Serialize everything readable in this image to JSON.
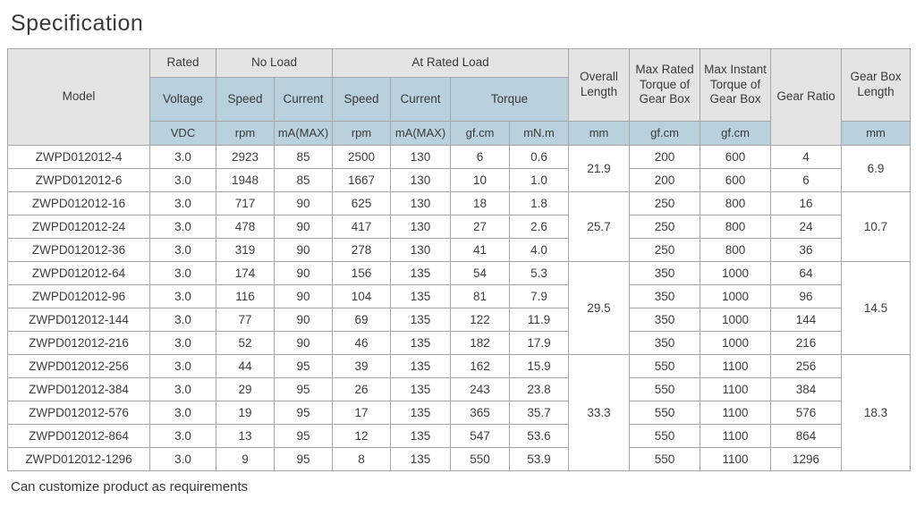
{
  "page": {
    "title": "Specification",
    "footnote": "Can customize product as requirements"
  },
  "table": {
    "header": {
      "model": "Model",
      "rated": "Rated",
      "no_load": "No Load",
      "at_rated_load": "At Rated Load",
      "voltage": "Voltage",
      "speed": "Speed",
      "current": "Current",
      "torque": "Torque",
      "overall_length": "Overall Length",
      "max_rated_torque": "Max Rated Torque of Gear Box",
      "max_instant_torque": "Max Instant Torque of Gear Box",
      "gear_ratio": "Gear Ratio",
      "gear_box_length": "Gear Box Length",
      "units": {
        "vdc": "VDC",
        "rpm": "rpm",
        "ma_max": "mA(MAX)",
        "gf_cm": "gf.cm",
        "mn_m": "mN.m",
        "mm": "mm"
      }
    },
    "colors": {
      "header_gray": "#e4e4e4",
      "header_blue": "#b9d0dd",
      "border": "#a6a6a6",
      "text": "#3d3d3d"
    },
    "rows": [
      {
        "model": "ZWPD012012-4",
        "voltage": "3.0",
        "no_load_speed": "2923",
        "no_load_current": "85",
        "rated_speed": "2500",
        "rated_current": "130",
        "torque_gf_cm": "6",
        "torque_mn_m": "0.6",
        "max_rated_torque": "200",
        "max_instant_torque": "600",
        "gear_ratio": "4"
      },
      {
        "model": "ZWPD012012-6",
        "voltage": "3.0",
        "no_load_speed": "1948",
        "no_load_current": "85",
        "rated_speed": "1667",
        "rated_current": "130",
        "torque_gf_cm": "10",
        "torque_mn_m": "1.0",
        "max_rated_torque": "200",
        "max_instant_torque": "600",
        "gear_ratio": "6"
      },
      {
        "model": "ZWPD012012-16",
        "voltage": "3.0",
        "no_load_speed": "717",
        "no_load_current": "90",
        "rated_speed": "625",
        "rated_current": "130",
        "torque_gf_cm": "18",
        "torque_mn_m": "1.8",
        "max_rated_torque": "250",
        "max_instant_torque": "800",
        "gear_ratio": "16"
      },
      {
        "model": "ZWPD012012-24",
        "voltage": "3.0",
        "no_load_speed": "478",
        "no_load_current": "90",
        "rated_speed": "417",
        "rated_current": "130",
        "torque_gf_cm": "27",
        "torque_mn_m": "2.6",
        "max_rated_torque": "250",
        "max_instant_torque": "800",
        "gear_ratio": "24"
      },
      {
        "model": "ZWPD012012-36",
        "voltage": "3.0",
        "no_load_speed": "319",
        "no_load_current": "90",
        "rated_speed": "278",
        "rated_current": "130",
        "torque_gf_cm": "41",
        "torque_mn_m": "4.0",
        "max_rated_torque": "250",
        "max_instant_torque": "800",
        "gear_ratio": "36"
      },
      {
        "model": "ZWPD012012-64",
        "voltage": "3.0",
        "no_load_speed": "174",
        "no_load_current": "90",
        "rated_speed": "156",
        "rated_current": "135",
        "torque_gf_cm": "54",
        "torque_mn_m": "5.3",
        "max_rated_torque": "350",
        "max_instant_torque": "1000",
        "gear_ratio": "64"
      },
      {
        "model": "ZWPD012012-96",
        "voltage": "3.0",
        "no_load_speed": "116",
        "no_load_current": "90",
        "rated_speed": "104",
        "rated_current": "135",
        "torque_gf_cm": "81",
        "torque_mn_m": "7.9",
        "max_rated_torque": "350",
        "max_instant_torque": "1000",
        "gear_ratio": "96"
      },
      {
        "model": "ZWPD012012-144",
        "voltage": "3.0",
        "no_load_speed": "77",
        "no_load_current": "90",
        "rated_speed": "69",
        "rated_current": "135",
        "torque_gf_cm": "122",
        "torque_mn_m": "11.9",
        "max_rated_torque": "350",
        "max_instant_torque": "1000",
        "gear_ratio": "144"
      },
      {
        "model": "ZWPD012012-216",
        "voltage": "3.0",
        "no_load_speed": "52",
        "no_load_current": "90",
        "rated_speed": "46",
        "rated_current": "135",
        "torque_gf_cm": "182",
        "torque_mn_m": "17.9",
        "max_rated_torque": "350",
        "max_instant_torque": "1000",
        "gear_ratio": "216"
      },
      {
        "model": "ZWPD012012-256",
        "voltage": "3.0",
        "no_load_speed": "44",
        "no_load_current": "95",
        "rated_speed": "39",
        "rated_current": "135",
        "torque_gf_cm": "162",
        "torque_mn_m": "15.9",
        "max_rated_torque": "550",
        "max_instant_torque": "1100",
        "gear_ratio": "256"
      },
      {
        "model": "ZWPD012012-384",
        "voltage": "3.0",
        "no_load_speed": "29",
        "no_load_current": "95",
        "rated_speed": "26",
        "rated_current": "135",
        "torque_gf_cm": "243",
        "torque_mn_m": "23.8",
        "max_rated_torque": "550",
        "max_instant_torque": "1100",
        "gear_ratio": "384"
      },
      {
        "model": "ZWPD012012-576",
        "voltage": "3.0",
        "no_load_speed": "19",
        "no_load_current": "95",
        "rated_speed": "17",
        "rated_current": "135",
        "torque_gf_cm": "365",
        "torque_mn_m": "35.7",
        "max_rated_torque": "550",
        "max_instant_torque": "1100",
        "gear_ratio": "576"
      },
      {
        "model": "ZWPD012012-864",
        "voltage": "3.0",
        "no_load_speed": "13",
        "no_load_current": "95",
        "rated_speed": "12",
        "rated_current": "135",
        "torque_gf_cm": "547",
        "torque_mn_m": "53.6",
        "max_rated_torque": "550",
        "max_instant_torque": "1100",
        "gear_ratio": "864"
      },
      {
        "model": "ZWPD012012-1296",
        "voltage": "3.0",
        "no_load_speed": "9",
        "no_load_current": "95",
        "rated_speed": "8",
        "rated_current": "135",
        "torque_gf_cm": "550",
        "torque_mn_m": "53.9",
        "max_rated_torque": "550",
        "max_instant_torque": "1100",
        "gear_ratio": "1296"
      }
    ],
    "groups": [
      {
        "start": 0,
        "count": 2,
        "overall_length": "21.9",
        "gear_box_length": "6.9"
      },
      {
        "start": 2,
        "count": 3,
        "overall_length": "25.7",
        "gear_box_length": "10.7"
      },
      {
        "start": 5,
        "count": 4,
        "overall_length": "29.5",
        "gear_box_length": "14.5"
      },
      {
        "start": 9,
        "count": 5,
        "overall_length": "33.3",
        "gear_box_length": "18.3"
      }
    ]
  }
}
